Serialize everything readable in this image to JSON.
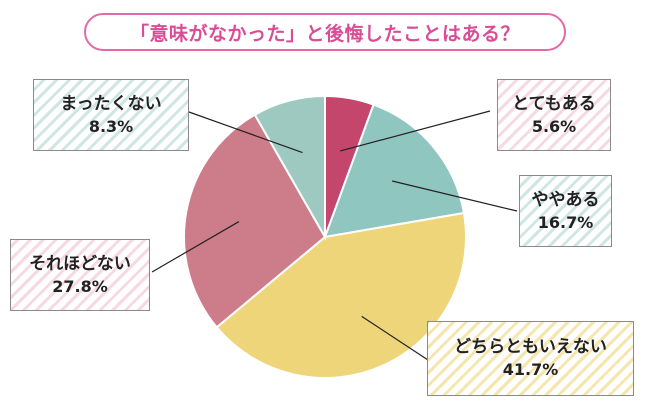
{
  "chart_data": {
    "type": "pie",
    "title": "「意味がなかった」と後悔したことはある？",
    "slices": [
      {
        "label": "とてもある",
        "value": 5.6,
        "display": "5.6%",
        "color": "#c4466c"
      },
      {
        "label": "ややある",
        "value": 16.7,
        "display": "16.7%",
        "color": "#8fc6c0"
      },
      {
        "label": "どちらともいえない",
        "value": 41.7,
        "display": "41.7%",
        "color": "#eed57a"
      },
      {
        "label": "それほどない",
        "value": 27.8,
        "display": "27.8%",
        "color": "#cd7d89"
      },
      {
        "label": "まったくない",
        "value": 8.3,
        "display": "8.3%",
        "color": "#9ec9c1"
      }
    ],
    "start_angle": "12 o'clock",
    "direction": "clockwise",
    "legend": "none"
  }
}
